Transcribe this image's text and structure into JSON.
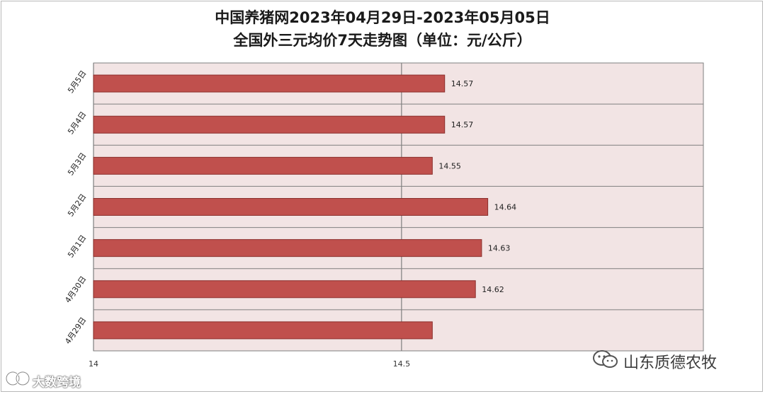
{
  "chart_data": {
    "type": "bar",
    "orientation": "horizontal",
    "title": "中国养猪网2023年04月29日-2023年05月05日",
    "subtitle": "全国外三元均价7天走势图（单位：元/公斤）",
    "categories": [
      "5月5日",
      "5月4日",
      "5月3日",
      "5月2日",
      "5月1日",
      "4月30日",
      "4月29日"
    ],
    "values": [
      14.57,
      14.57,
      14.55,
      14.64,
      14.63,
      14.62,
      14.55
    ],
    "data_labels": [
      "14.57",
      "14.57",
      "14.55",
      "14.64",
      "14.63",
      "14.62",
      ""
    ],
    "xlim": [
      14,
      14.99
    ],
    "xticks": [
      {
        "value": 14,
        "label": "14"
      },
      {
        "value": 14.5,
        "label": "14.5"
      }
    ],
    "grid": true,
    "colors": {
      "bar": "#c0504d",
      "bar_edge": "#8b2f2c",
      "plot_bg": "#f2e4e4",
      "grid": "#7f7f7f"
    }
  },
  "watermarks": {
    "right_text": "山东质德农牧",
    "left_text": "大数跨境"
  }
}
